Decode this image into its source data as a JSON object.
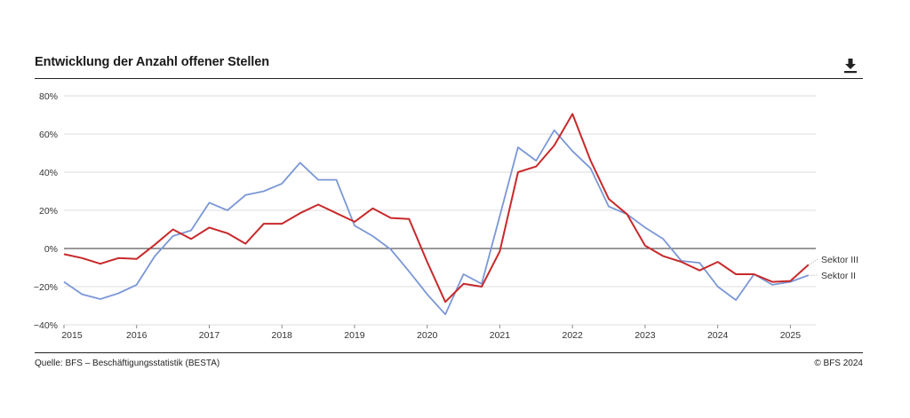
{
  "header": {
    "title": "Entwicklung der Anzahl offener Stellen",
    "download_icon": "download-icon"
  },
  "footer": {
    "source": "Quelle: BFS – Beschäftigungsstatistik (BESTA)",
    "copyright": "© BFS 2024"
  },
  "colors": {
    "sektor_iii": "#c8292b",
    "sektor_ii": "#7b97d6",
    "grid": "#dcdcdc",
    "zero_line": "#333333"
  },
  "chart_data": {
    "type": "line",
    "title": "Entwicklung der Anzahl offener Stellen",
    "xlabel": "",
    "ylabel": "",
    "ylim": [
      -40,
      80
    ],
    "xlim": [
      2015,
      2025.35
    ],
    "grid": true,
    "y_ticks": [
      -40,
      -20,
      0,
      20,
      40,
      60,
      80
    ],
    "y_tick_labels": [
      "−40%",
      "−20%",
      "0%",
      "20%",
      "40%",
      "60%",
      "80%"
    ],
    "x_ticks": [
      2015,
      2016,
      2017,
      2018,
      2019,
      2020,
      2021,
      2022,
      2023,
      2024,
      2025
    ],
    "x_tick_labels": [
      "2015",
      "2016",
      "2017",
      "2018",
      "2019",
      "2020",
      "2021",
      "2022",
      "2023",
      "2024",
      "2025"
    ],
    "x": [
      2015.0,
      2015.25,
      2015.5,
      2015.75,
      2016.0,
      2016.25,
      2016.5,
      2016.75,
      2017.0,
      2017.25,
      2017.5,
      2017.75,
      2018.0,
      2018.25,
      2018.5,
      2018.75,
      2019.0,
      2019.25,
      2019.5,
      2019.75,
      2020.0,
      2020.25,
      2020.5,
      2020.75,
      2021.0,
      2021.25,
      2021.5,
      2021.75,
      2022.0,
      2022.25,
      2022.5,
      2022.75,
      2023.0,
      2023.25,
      2023.5,
      2023.75,
      2024.0,
      2024.25,
      2024.5,
      2024.75,
      2025.0,
      2025.25
    ],
    "series": [
      {
        "name": "Sektor III",
        "values": [
          -3,
          -5,
          -8,
          -5,
          -5.5,
          2,
          10,
          5,
          11,
          8,
          2.5,
          13,
          13,
          18.5,
          23,
          18.5,
          14,
          21,
          16,
          15.5,
          -7,
          -28,
          -18.5,
          -20,
          -1.5,
          40,
          43,
          54,
          70.5,
          46,
          26,
          18,
          1.5,
          -4,
          -7,
          -11.5,
          -7,
          -13.5,
          -13.5,
          -17.5,
          -17,
          -8.5
        ]
      },
      {
        "name": "Sektor II",
        "values": [
          -17.5,
          -24,
          -26.5,
          -23.5,
          -19,
          -4,
          6.5,
          9.5,
          24,
          20,
          28,
          30,
          34,
          45,
          36,
          36,
          12,
          6.5,
          -0.5,
          -12,
          -24,
          -34.5,
          -13.5,
          -18.5,
          17,
          53,
          46,
          62,
          51,
          42,
          22,
          18,
          11,
          5,
          -6.5,
          -7.5,
          -20,
          -27,
          -13.5,
          -19,
          -17.5,
          -14
        ]
      }
    ]
  }
}
